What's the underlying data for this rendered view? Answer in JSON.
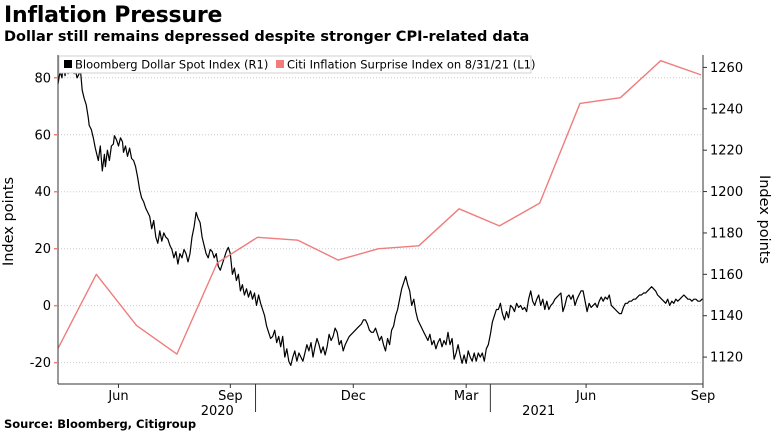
{
  "header": {
    "title": "Inflation Pressure",
    "subtitle": "Dollar still remains depressed despite stronger CPI-related data"
  },
  "footer": {
    "source": "Source: Bloomberg, Citigroup"
  },
  "colors": {
    "dollar": "#000000",
    "citi": "#f07c7c",
    "grid": "#cccccc",
    "axis": "#333333"
  },
  "chart_data": {
    "type": "line",
    "legend_position": "top-left",
    "series": [
      {
        "name": "Bloomberg Dollar Spot Index (R1)",
        "axis": "right",
        "color": "#000000",
        "x": [
          0,
          2,
          4,
          5,
          7,
          8,
          10,
          11,
          13,
          14,
          16,
          17,
          19,
          21,
          22,
          24,
          26,
          28,
          30,
          31,
          33,
          35,
          37,
          39,
          40,
          42,
          44,
          46,
          47,
          49,
          51,
          53,
          55,
          56,
          58,
          60,
          62,
          64,
          65,
          67,
          69,
          71,
          73,
          75,
          77,
          79,
          81,
          83,
          85,
          87,
          89,
          91,
          93,
          95,
          97,
          99,
          101,
          103,
          105,
          107,
          109,
          111,
          113,
          115,
          117,
          119,
          121,
          123,
          125,
          127,
          129,
          131,
          133,
          135,
          137,
          139,
          141,
          143,
          145,
          147,
          149,
          151,
          153,
          155,
          157,
          159,
          161,
          163,
          165,
          167,
          169,
          171,
          173,
          175,
          177,
          179,
          181,
          183,
          185,
          187,
          189,
          191,
          193,
          195,
          197,
          199,
          201,
          203,
          205,
          207,
          209,
          211,
          213,
          215,
          217,
          219,
          221,
          223,
          225,
          227,
          229,
          231,
          233,
          235,
          237,
          239,
          241,
          243,
          245,
          247,
          249,
          251,
          253,
          255,
          257,
          259,
          261,
          263,
          265,
          267,
          269,
          271,
          273,
          275,
          277,
          279,
          281,
          283,
          285,
          287,
          289,
          291,
          293,
          295,
          297,
          299,
          301,
          303,
          305,
          307,
          309,
          311,
          313,
          315,
          317,
          319,
          321,
          323,
          325,
          327,
          329,
          331,
          333,
          335,
          337,
          339,
          341,
          343,
          345,
          347,
          349,
          351,
          353,
          355,
          357,
          359,
          361,
          363,
          365,
          367,
          369,
          371,
          373,
          375,
          377,
          379,
          381,
          383,
          385,
          387,
          389,
          391,
          393,
          395,
          397,
          399,
          401,
          403,
          405,
          407,
          409,
          411,
          413,
          415,
          417,
          419,
          421,
          423,
          425,
          427,
          429,
          431,
          433,
          435,
          437,
          439,
          441,
          443,
          445,
          447,
          449,
          451,
          453,
          455,
          457,
          459,
          461,
          463,
          465,
          467,
          469,
          471,
          473,
          475,
          477,
          479,
          481,
          483,
          485,
          487,
          489,
          491,
          493,
          495,
          497,
          499,
          501,
          503,
          505,
          507,
          509,
          511,
          513,
          515,
          517,
          519,
          521,
          523,
          525,
          527,
          529,
          531,
          533,
          535,
          537,
          539,
          541,
          543,
          545,
          547,
          549,
          551,
          553,
          555,
          557,
          559,
          561,
          563,
          565,
          567,
          569,
          571,
          573,
          575,
          577,
          579,
          581,
          583,
          585,
          587,
          589,
          591,
          593,
          595,
          597,
          599,
          601,
          603,
          605,
          607,
          609,
          611,
          613,
          615,
          617,
          619,
          621,
          623,
          625,
          627,
          629,
          631,
          633,
          635,
          637,
          639,
          640
        ],
        "values": [
          1252,
          1258,
          1255,
          1261,
          1256,
          1262,
          1257,
          1263,
          1258,
          1262,
          1257,
          1259,
          1255,
          1257,
          1260,
          1249,
          1245,
          1242,
          1236,
          1232,
          1230,
          1226,
          1221,
          1217,
          1215,
          1222,
          1210,
          1218,
          1212,
          1220,
          1215,
          1222,
          1223,
          1227,
          1225,
          1222,
          1226,
          1224,
          1219,
          1222,
          1217,
          1221,
          1216,
          1215,
          1212,
          1207,
          1201,
          1197,
          1195,
          1192,
          1190,
          1188,
          1182,
          1186,
          1178,
          1175,
          1181,
          1176,
          1180,
          1178,
          1177,
          1174,
          1172,
          1168,
          1171,
          1165,
          1170,
          1168,
          1172,
          1170,
          1166,
          1170,
          1178,
          1183,
          1190,
          1187,
          1185,
          1178,
          1174,
          1170,
          1168,
          1172,
          1171,
          1168,
          1170,
          1164,
          1162,
          1165,
          1168,
          1171,
          1173,
          1170,
          1160,
          1163,
          1157,
          1160,
          1152,
          1155,
          1150,
          1153,
          1149,
          1152,
          1148,
          1151,
          1145,
          1150,
          1146,
          1143,
          1140,
          1135,
          1132,
          1129,
          1130,
          1133,
          1127,
          1130,
          1125,
          1130,
          1120,
          1124,
          1118,
          1116,
          1120,
          1123,
          1118,
          1122,
          1120,
          1118,
          1122,
          1126,
          1123,
          1127,
          1120,
          1125,
          1129,
          1126,
          1122,
          1125,
          1121,
          1125,
          1131,
          1128,
          1130,
          1134,
          1132,
          1126,
          1128,
          1123,
          1126,
          1128,
          1130,
          1131,
          1132,
          1133,
          1134,
          1135,
          1136,
          1138,
          1138,
          1136,
          1133,
          1132,
          1132,
          1134,
          1131,
          1128,
          1130,
          1126,
          1123,
          1129,
          1126,
          1133,
          1135,
          1140,
          1143,
          1148,
          1153,
          1156,
          1159,
          1155,
          1152,
          1145,
          1148,
          1142,
          1138,
          1136,
          1134,
          1132,
          1130,
          1128,
          1131,
          1126,
          1128,
          1124,
          1127,
          1129,
          1125,
          1128,
          1126,
          1132,
          1126,
          1129,
          1119,
          1122,
          1126,
          1121,
          1117,
          1121,
          1117,
          1123,
          1120,
          1118,
          1122,
          1118,
          1122,
          1120,
          1122,
          1118,
          1124,
          1126,
          1131,
          1137,
          1140,
          1143,
          1143,
          1146,
          1141,
          1138,
          1142,
          1139,
          1145,
          1144,
          1142,
          1146,
          1144,
          1145,
          1143,
          1144,
          1142,
          1148,
          1152,
          1147,
          1145,
          1148,
          1150,
          1145,
          1148,
          1143,
          1147,
          1143,
          1145,
          1146,
          1148,
          1149,
          1150,
          1151,
          1142,
          1145,
          1149,
          1150,
          1148,
          1150,
          1145,
          1148,
          1150,
          1152,
          1152,
          1147,
          1142,
          1146,
          1144,
          1145,
          1146,
          1144,
          1147,
          1149,
          1147,
          1149,
          1148,
          1150,
          1145,
          1144,
          1143,
          1142,
          1141,
          1141,
          1144,
          1146,
          1146,
          1147,
          1147,
          1148,
          1148,
          1149,
          1150,
          1150,
          1151,
          1151,
          1152,
          1153,
          1154,
          1153,
          1152,
          1150,
          1149,
          1148,
          1147,
          1146,
          1148,
          1145,
          1147,
          1146,
          1148,
          1147,
          1148,
          1149,
          1150,
          1149,
          1148,
          1148,
          1147,
          1148,
          1148,
          1147,
          1147,
          1148,
          1148
        ]
      },
      {
        "name": "Citi Inflation Surprise Index on 8/31/21 (L1)",
        "axis": "left",
        "color": "#f07c7c",
        "x": [
          0,
          38,
          78,
          118,
          158,
          198,
          238,
          278,
          318,
          358,
          398,
          438,
          478,
          518,
          558,
          598,
          638
        ],
        "values": [
          -15,
          11,
          -7,
          -17,
          15,
          24,
          23,
          16,
          20,
          21,
          34,
          28,
          36,
          71,
          73,
          86,
          81
        ]
      }
    ],
    "left_axis": {
      "label": "Index points",
      "ticks": [
        -20,
        0,
        20,
        40,
        60,
        80
      ],
      "range": [
        -27.5,
        88
      ]
    },
    "right_axis": {
      "label": "Index points",
      "ticks": [
        1120,
        1140,
        1160,
        1180,
        1200,
        1220,
        1240,
        1260
      ],
      "range": [
        1107,
        1266
      ]
    },
    "x_axis": {
      "range": [
        0,
        640
      ],
      "month_ticks": [
        {
          "label": "Jun",
          "x": 60
        },
        {
          "label": "Sep",
          "x": 171
        },
        {
          "label": "Dec",
          "x": 293
        },
        {
          "label": "Mar",
          "x": 405
        },
        {
          "label": "Jun",
          "x": 524
        },
        {
          "label": "Sep",
          "x": 640
        }
      ],
      "year_labels": [
        {
          "label": "2020",
          "x": 158
        },
        {
          "label": "2021",
          "x": 477
        }
      ],
      "year_dividers": [
        196,
        429
      ]
    }
  }
}
